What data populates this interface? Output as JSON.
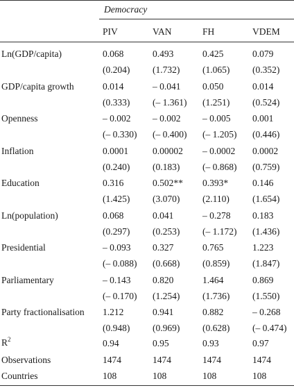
{
  "table": {
    "group_header": "Democracy",
    "columns": [
      "PIV",
      "VAN",
      "FH",
      "VDEM"
    ],
    "rows": [
      {
        "label": "Ln(GDP/capita)",
        "coef": [
          "0.068",
          "0.493",
          "0.425",
          "0.079"
        ],
        "se": [
          "(0.204)",
          "(1.732)",
          "(1.065)",
          "(0.352)"
        ]
      },
      {
        "label": "GDP/capita growth",
        "coef": [
          "0.014",
          "– 0.041",
          "0.050",
          "0.014"
        ],
        "se": [
          "(0.333)",
          "(– 1.361)",
          "(1.251)",
          "(0.524)"
        ]
      },
      {
        "label": "Openness",
        "coef": [
          "– 0.002",
          "– 0.002",
          "– 0.005",
          "0.001"
        ],
        "se": [
          "(– 0.330)",
          "(– 0.400)",
          "(– 1.205)",
          "(0.446)"
        ]
      },
      {
        "label": "Inflation",
        "coef": [
          "0.0001",
          "0.00002",
          "– 0.0002",
          "0.0002"
        ],
        "se": [
          "(0.240)",
          "(0.183)",
          "(– 0.868)",
          "(0.759)"
        ]
      },
      {
        "label": "Education",
        "coef": [
          "0.316",
          "0.502**",
          "0.393*",
          "0.146"
        ],
        "se": [
          "(1.425)",
          "(3.070)",
          "(2.110)",
          "(1.654)"
        ]
      },
      {
        "label": "Ln(population)",
        "coef": [
          "0.068",
          "0.041",
          "– 0.278",
          "0.183"
        ],
        "se": [
          "(0.297)",
          "(0.253)",
          "(– 1.172)",
          "(1.436)"
        ]
      },
      {
        "label": "Presidential",
        "coef": [
          "– 0.093",
          "0.327",
          "0.765",
          "1.223"
        ],
        "se": [
          "(– 0.088)",
          "(0.668)",
          "(0.859)",
          "(1.847)"
        ]
      },
      {
        "label": "Parliamentary",
        "coef": [
          "– 0.143",
          "0.820",
          "1.464",
          "0.869"
        ],
        "se": [
          "(– 0.170)",
          "(1.254)",
          "(1.736)",
          "(1.550)"
        ]
      },
      {
        "label": "Party fractionalisation",
        "coef": [
          "1.212",
          "0.941",
          "0.882",
          "– 0.268"
        ],
        "se": [
          "(0.948)",
          "(0.969)",
          "(0.628)",
          "(– 0.474)"
        ]
      }
    ],
    "r2": {
      "label_base": "R",
      "label_sup": "2",
      "values": [
        "0.94",
        "0.95",
        "0.93",
        "0.97"
      ]
    },
    "observations": {
      "label": "Observations",
      "values": [
        "1474",
        "1474",
        "1474",
        "1474"
      ]
    },
    "countries": {
      "label": "Countries",
      "values": [
        "108",
        "108",
        "108",
        "108"
      ]
    }
  }
}
